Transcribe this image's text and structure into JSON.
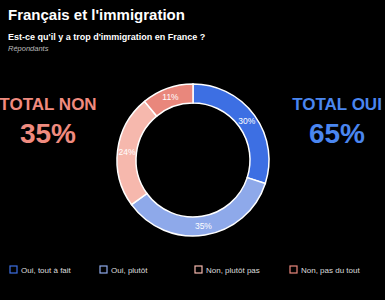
{
  "chart_data": {
    "type": "pie",
    "title": "Français et l'immigration",
    "subtitle": "Est-ce qu'il y a trop d'immigration en France ?",
    "note": "Répondants",
    "categories": [
      "Oui, tout à fait",
      "Oui, plutôt",
      "Non, plutôt pas",
      "Non, pas du tout"
    ],
    "values": [
      30,
      35,
      24,
      11
    ],
    "value_labels": [
      "30%",
      "35%",
      "24%",
      "11%"
    ],
    "colors": [
      "#3d6fe3",
      "#8ea9ea",
      "#f6b8ad",
      "#e9877c"
    ],
    "data_labels": true,
    "legend": "bottom",
    "totals": [
      {
        "label": "TOTAL NON",
        "value": 35,
        "value_label": "35%",
        "color": "#f08b7f"
      },
      {
        "label": "TOTAL OUI",
        "value": 65,
        "value_label": "65%",
        "color": "#4a86f0"
      }
    ]
  }
}
